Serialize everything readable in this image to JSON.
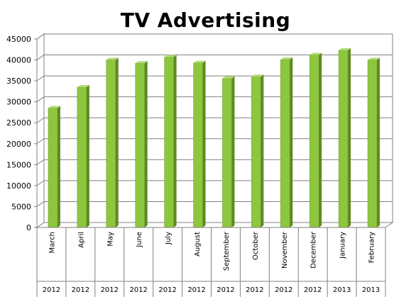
{
  "chart_data": {
    "type": "bar",
    "title": "TV Advertising",
    "xlabel": "",
    "ylabel": "",
    "ylim": [
      0,
      45000
    ],
    "yticks": [
      0,
      5000,
      10000,
      15000,
      20000,
      25000,
      30000,
      35000,
      40000,
      45000
    ],
    "categories": [
      "March",
      "April",
      "May",
      "June",
      "July",
      "August",
      "September",
      "October",
      "November",
      "December",
      "January",
      "February"
    ],
    "years": [
      "2012",
      "2012",
      "2012",
      "2012",
      "2012",
      "2012",
      "2012",
      "2012",
      "2012",
      "2012",
      "2013",
      "2013"
    ],
    "values": [
      28500,
      33500,
      40000,
      39200,
      40700,
      39300,
      35600,
      36000,
      40100,
      41200,
      42300,
      40000
    ],
    "grid": true,
    "legend": "none",
    "bar_color": "#8dc63f",
    "bar_side_color": "#5e8a22",
    "bar_top_color": "#b5dc78"
  }
}
